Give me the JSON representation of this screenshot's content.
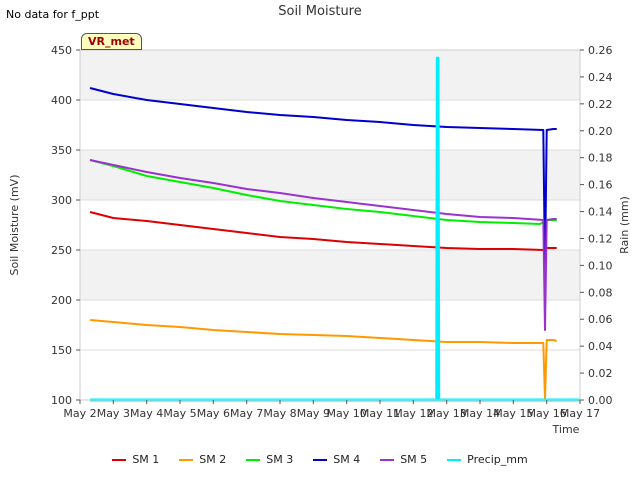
{
  "no_data_note": "No data for f_ppt",
  "site_badge": "VR_met",
  "chart_data": {
    "type": "line",
    "title": "Soil Moisture",
    "xlabel": "Time",
    "ylabel": "Soil Moisture (mV)",
    "y2label": "Rain (mm)",
    "ylim": [
      100,
      450
    ],
    "y2lim": [
      0.0,
      0.26
    ],
    "xlim": [
      0,
      15
    ],
    "yticks": [
      100,
      150,
      200,
      250,
      300,
      350,
      400,
      450
    ],
    "y2ticks": [
      "0.00",
      "0.02",
      "0.04",
      "0.06",
      "0.08",
      "0.10",
      "0.12",
      "0.14",
      "0.16",
      "0.18",
      "0.20",
      "0.22",
      "0.24",
      "0.26"
    ],
    "xtick_labels": [
      "May 2",
      "May 3",
      "May 4",
      "May 5",
      "May 6",
      "May 7",
      "May 8",
      "May 9",
      "May 10",
      "May 11",
      "May 12",
      "May 13",
      "May 14",
      "May 15",
      "May 16",
      "May 17"
    ],
    "shaded_bands": [
      [
        200,
        250
      ],
      [
        300,
        350
      ],
      [
        400,
        450
      ]
    ],
    "series": [
      {
        "name": "SM 1",
        "color": "#dd0000",
        "axis": "left",
        "x": [
          0.3,
          1,
          2,
          3,
          4,
          5,
          6,
          7,
          8,
          9,
          10,
          11,
          12,
          13,
          13.9,
          14.0,
          14.2,
          14.3
        ],
        "y": [
          288,
          282,
          279,
          275,
          271,
          267,
          263,
          261,
          258,
          256,
          254,
          252,
          251,
          251,
          250,
          252,
          252,
          252
        ]
      },
      {
        "name": "SM 2",
        "color": "#ff9900",
        "axis": "left",
        "x": [
          0.3,
          1,
          2,
          3,
          4,
          5,
          6,
          7,
          8,
          9,
          10,
          11,
          12,
          13,
          13.9,
          13.95,
          14.0,
          14.2,
          14.3
        ],
        "y": [
          180,
          178,
          175,
          173,
          170,
          168,
          166,
          165,
          164,
          162,
          160,
          158,
          158,
          157,
          157,
          101,
          160,
          160,
          159
        ]
      },
      {
        "name": "SM 3",
        "color": "#00ee00",
        "axis": "left",
        "x": [
          0.3,
          1,
          2,
          3,
          4,
          5,
          6,
          7,
          8,
          9,
          10,
          11,
          12,
          13,
          13.8,
          14.0,
          14.2,
          14.3
        ],
        "y": [
          340,
          334,
          324,
          318,
          312,
          305,
          299,
          295,
          291,
          288,
          284,
          280,
          278,
          277,
          276,
          280,
          280,
          280
        ]
      },
      {
        "name": "SM 4",
        "color": "#0000cc",
        "axis": "left",
        "x": [
          0.3,
          1,
          2,
          3,
          4,
          5,
          6,
          7,
          8,
          9,
          10,
          11,
          12,
          13,
          13.9,
          13.95,
          14.0,
          14.2,
          14.3
        ],
        "y": [
          412,
          406,
          400,
          396,
          392,
          388,
          385,
          383,
          380,
          378,
          375,
          373,
          372,
          371,
          370,
          230,
          370,
          371,
          371
        ]
      },
      {
        "name": "SM 5",
        "color": "#9933cc",
        "axis": "left",
        "x": [
          0.3,
          1,
          2,
          3,
          4,
          5,
          6,
          7,
          8,
          9,
          10,
          11,
          12,
          13,
          13.9,
          13.95,
          14.0,
          14.2,
          14.3
        ],
        "y": [
          340,
          335,
          328,
          322,
          317,
          311,
          307,
          302,
          298,
          294,
          290,
          286,
          283,
          282,
          280,
          170,
          280,
          281,
          281
        ]
      },
      {
        "name": "Precip_mm",
        "color": "#00eeff",
        "axis": "right",
        "x": [
          0.3,
          10.7,
          10.72,
          10.74,
          10.76,
          15
        ],
        "y": [
          0,
          0,
          0.254,
          0.254,
          0,
          0
        ]
      }
    ]
  }
}
